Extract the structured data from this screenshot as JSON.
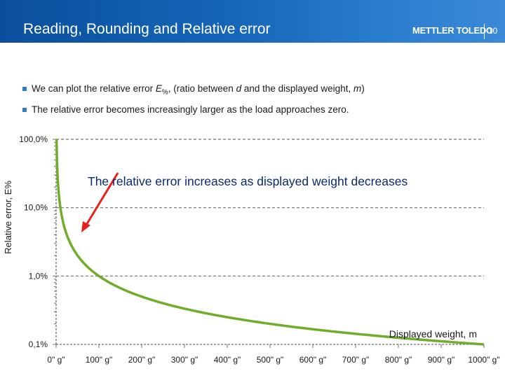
{
  "header": {
    "title": "Reading, Rounding and Relative error",
    "brand": "METTLER TOLEDO",
    "slide_number": "10"
  },
  "bullets": [
    {
      "pre": "We can plot the relative error ",
      "e": "E",
      "sub": "%",
      "mid": ", (ratio between ",
      "d": "d",
      "post": " and the displayed weight, ",
      "m": "m",
      "end": ")"
    },
    {
      "text": "The relative error becomes increasingly larger as the load approaches zero."
    }
  ],
  "annotation": "The relative error increases as displayed weight decreases",
  "colors": {
    "header": "#1565b8",
    "curve": "#70ad2b",
    "arrow": "#e8201b",
    "grid": "#707070"
  },
  "chart_data": {
    "type": "line",
    "yscale": "log",
    "ylabel": "Relative error, E%",
    "xlabel": "Displayed weight, m",
    "y_ticks": [
      100,
      10,
      1,
      0.1
    ],
    "y_tick_labels": [
      "100,0%",
      "10,0%",
      "1,0%",
      "0,1%"
    ],
    "x_ticks": [
      0,
      100,
      200,
      300,
      400,
      500,
      600,
      700,
      800,
      900,
      1000
    ],
    "x_tick_labels": [
      "0\" g\"",
      "100\" g\"",
      "200\" g\"",
      "300\" g\"",
      "400\" g\"",
      "500\" g\"",
      "600\" g\"",
      "700\" g\"",
      "800\" g\"",
      "900\" g\"",
      "1000\" g\""
    ],
    "xlim": [
      0,
      1000
    ],
    "ylim": [
      0.1,
      100
    ],
    "grid": "horizontal dashed",
    "series": [
      {
        "x": [
          1,
          2,
          5,
          10,
          20,
          30,
          50,
          75,
          100,
          150,
          200,
          300,
          400,
          500,
          600,
          700,
          800,
          900,
          1000
        ],
        "y": [
          100,
          50,
          20,
          10,
          5,
          3.33,
          2,
          1.33,
          1,
          0.667,
          0.5,
          0.333,
          0.25,
          0.2,
          0.167,
          0.143,
          0.125,
          0.111,
          0.1
        ]
      }
    ]
  }
}
